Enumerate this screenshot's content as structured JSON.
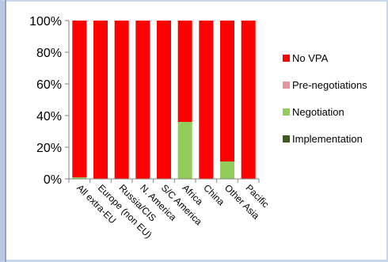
{
  "colors": {
    "No VPA": "#ff0000",
    "Pre-negotiations": "#e6959a",
    "Negotiation": "#92cd5b",
    "Implementation": "#3d5c1e"
  },
  "chart_data": {
    "type": "bar",
    "stacked": true,
    "title": "",
    "xlabel": "",
    "ylabel": "",
    "ylim": [
      0,
      100
    ],
    "y_ticks": [
      "0%",
      "20%",
      "40%",
      "60%",
      "80%",
      "100%"
    ],
    "grid": false,
    "legend_position": "right",
    "categories": [
      "All extra-EU",
      "Europe (non EU)",
      "Russia/CIS",
      "N. America",
      "S/C America",
      "Africa",
      "China",
      "Other Asia",
      "Pacific"
    ],
    "series": [
      {
        "name": "Implementation",
        "values": [
          0,
          0,
          0,
          0,
          0,
          0,
          0,
          0,
          0
        ]
      },
      {
        "name": "Negotiation",
        "values": [
          1,
          0,
          0,
          0,
          0,
          36,
          0,
          11,
          0
        ]
      },
      {
        "name": "Pre-negotiations",
        "values": [
          0,
          0,
          0,
          0,
          0,
          0,
          0,
          0,
          0
        ]
      },
      {
        "name": "No VPA",
        "values": [
          99,
          100,
          100,
          100,
          100,
          64,
          100,
          89,
          100
        ]
      }
    ],
    "legend": [
      "No VPA",
      "Pre-negotiations",
      "Negotiation",
      "Implementation"
    ]
  }
}
